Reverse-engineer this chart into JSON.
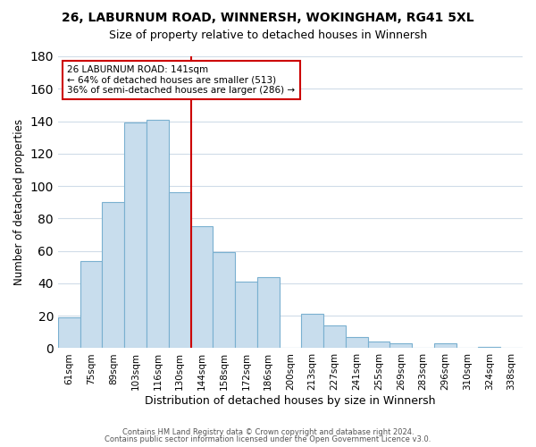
{
  "title1": "26, LABURNUM ROAD, WINNERSH, WOKINGHAM, RG41 5XL",
  "title2": "Size of property relative to detached houses in Winnersh",
  "xlabel": "Distribution of detached houses by size in Winnersh",
  "ylabel": "Number of detached properties",
  "categories": [
    "61sqm",
    "75sqm",
    "89sqm",
    "103sqm",
    "116sqm",
    "130sqm",
    "144sqm",
    "158sqm",
    "172sqm",
    "186sqm",
    "200sqm",
    "213sqm",
    "227sqm",
    "241sqm",
    "255sqm",
    "269sqm",
    "283sqm",
    "296sqm",
    "310sqm",
    "324sqm",
    "338sqm"
  ],
  "values": [
    19,
    54,
    90,
    139,
    141,
    96,
    75,
    59,
    41,
    44,
    0,
    21,
    14,
    7,
    4,
    3,
    0,
    3,
    0,
    1,
    0
  ],
  "bar_color": "#c8dded",
  "bar_edge_color": "#7ab0d0",
  "reference_line_color": "#cc0000",
  "annotation_title": "26 LABURNUM ROAD: 141sqm",
  "annotation_line1": "← 64% of detached houses are smaller (513)",
  "annotation_line2": "36% of semi-detached houses are larger (286) →",
  "annotation_box_color": "#ffffff",
  "annotation_box_edge": "#cc0000",
  "ylim": [
    0,
    180
  ],
  "yticks": [
    0,
    20,
    40,
    60,
    80,
    100,
    120,
    140,
    160,
    180
  ],
  "footnote1": "Contains HM Land Registry data © Crown copyright and database right 2024.",
  "footnote2": "Contains public sector information licensed under the Open Government Licence v3.0.",
  "background_color": "#ffffff",
  "grid_color": "#d0dce8"
}
